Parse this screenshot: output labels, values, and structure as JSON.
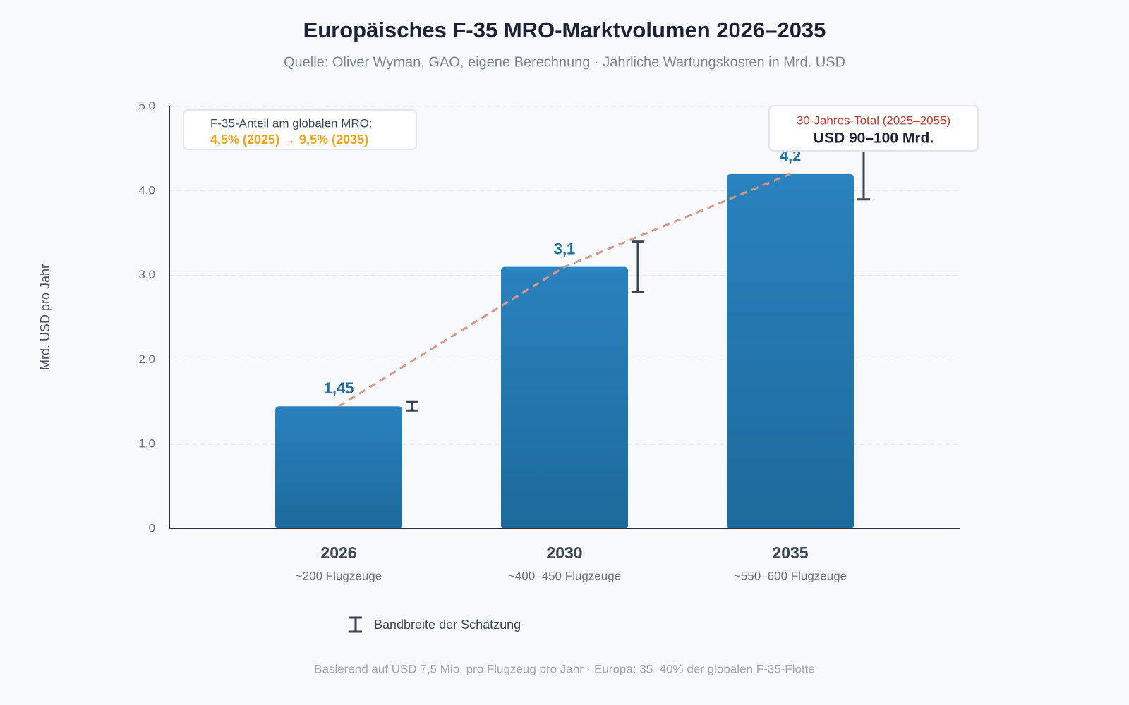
{
  "chart_data": {
    "type": "bar",
    "title": "Europäisches F-35 MRO-Marktvolumen 2026–2035",
    "subtitle": "Quelle: Oliver Wyman, GAO, eigene Berechnung · Jährliche Wartungskosten in Mrd. USD",
    "y_label": "Mrd. USD pro Jahr",
    "categories": [
      "2026",
      "2030",
      "2035"
    ],
    "category_notes": [
      "~200 Flugzeuge",
      "~400–450 Flugzeuge",
      "~550–600 Flugzeuge"
    ],
    "values": [
      1.45,
      3.1,
      4.2
    ],
    "value_labels": [
      "1,45",
      "3,1",
      "4,2"
    ],
    "error_low": [
      1.4,
      2.8,
      3.9
    ],
    "error_high": [
      1.5,
      3.4,
      4.5
    ],
    "color": "#2176ae",
    "trend_color": "#d9968a",
    "ylim": [
      0,
      5
    ],
    "yticks": [
      0,
      {
        "value": 1,
        "label": "1,0"
      },
      {
        "value": 2,
        "label": "2,0"
      },
      {
        "value": 3,
        "label": "3,0"
      },
      {
        "value": 4,
        "label": "4,0"
      },
      {
        "value": 5,
        "label": "5,0"
      }
    ],
    "grid": true,
    "annotations": {
      "share_title": "F-35-Anteil am globalen MRO:",
      "share_value": "4,5% (2025) → 9,5% (2035)",
      "total_title": "30-Jahres-Total (2025–2055)",
      "total_value": "USD 90–100 Mrd."
    },
    "legend": "Bandbreite der Schätzung",
    "footnote": "Basierend auf USD 7,5 Mio. pro Flugzeug pro Jahr · Europa: 35–40% der globalen F-35-Flotte"
  }
}
